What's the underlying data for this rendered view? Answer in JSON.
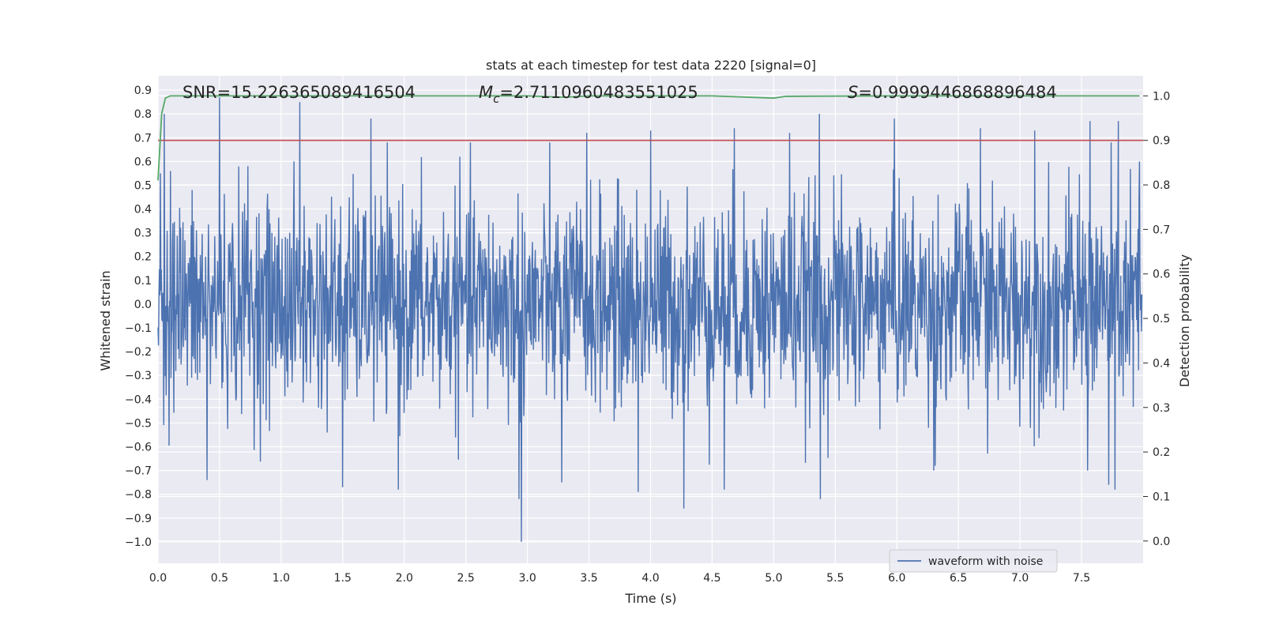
{
  "chart_data": {
    "type": "line",
    "title": "stats at each timestep for test data 2220 [signal=0]",
    "xlabel": "Time (s)",
    "ylabel_left": "Whitened strain",
    "ylabel_right": "Detection probability",
    "xlim": [
      0.0,
      8.0
    ],
    "ylim_left": [
      -1.09,
      0.96
    ],
    "ylim_right": [
      -0.05,
      1.045
    ],
    "x_ticks": [
      "0.0",
      "0.5",
      "1.0",
      "1.5",
      "2.0",
      "2.5",
      "3.0",
      "3.5",
      "4.0",
      "4.5",
      "5.0",
      "5.5",
      "6.0",
      "6.5",
      "7.0",
      "7.5"
    ],
    "y_left_ticks": [
      "0.9",
      "0.8",
      "0.7",
      "0.6",
      "0.5",
      "0.4",
      "0.3",
      "0.2",
      "0.1",
      "0.0",
      "−0.1",
      "−0.2",
      "−0.3",
      "−0.4",
      "−0.5",
      "−0.6",
      "−0.7",
      "−0.8",
      "−0.9",
      "−1.0"
    ],
    "y_right_ticks": [
      "1.0",
      "0.9",
      "0.8",
      "0.7",
      "0.6",
      "0.5",
      "0.4",
      "0.3",
      "0.2",
      "0.1",
      "0.0"
    ],
    "annotations": {
      "snr": "SNR=15.226365089416504",
      "mc_symbol": "M",
      "mc_sub": "c",
      "mc_value": "=2.7110960483551025",
      "s_symbol": "S",
      "s_value": "=0.9999446868896484"
    },
    "legend": {
      "label": "waveform with noise",
      "position": "lower-right"
    },
    "threshold": {
      "value": 0.9,
      "axis": "right",
      "color": "#c44e52"
    },
    "series": [
      {
        "name": "waveform with noise",
        "axis": "left",
        "color": "#4c72b0",
        "kind": "noise",
        "duration": 7.99,
        "samples": 2048,
        "rms": 0.22,
        "peaks": [
          [
            0.02,
            0.55
          ],
          [
            0.05,
            0.8
          ],
          [
            0.1,
            0.56
          ],
          [
            0.5,
            0.87
          ],
          [
            0.73,
            0.58
          ],
          [
            1.15,
            0.85
          ],
          [
            1.73,
            0.78
          ],
          [
            2.45,
            0.62
          ],
          [
            3.48,
            0.72
          ],
          [
            4.0,
            0.73
          ],
          [
            4.68,
            0.74
          ],
          [
            5.13,
            0.72
          ],
          [
            5.37,
            0.8
          ],
          [
            5.98,
            0.78
          ],
          [
            6.68,
            0.74
          ],
          [
            7.12,
            0.73
          ],
          [
            7.57,
            0.77
          ],
          [
            7.8,
            0.77
          ],
          [
            7.97,
            0.6
          ],
          [
            0.4,
            -0.74
          ],
          [
            1.5,
            -0.77
          ],
          [
            1.95,
            -0.78
          ],
          [
            2.93,
            -0.82
          ],
          [
            2.95,
            -1.0
          ],
          [
            3.28,
            -0.75
          ],
          [
            3.9,
            -0.79
          ],
          [
            4.27,
            -0.86
          ],
          [
            4.6,
            -0.78
          ],
          [
            5.38,
            -0.82
          ],
          [
            6.3,
            -0.7
          ],
          [
            7.55,
            -0.7
          ],
          [
            7.72,
            -0.76
          ],
          [
            7.77,
            -0.78
          ]
        ]
      },
      {
        "name": "detection probability",
        "axis": "right",
        "color": "#55a868",
        "x": [
          0.0,
          0.03,
          0.06,
          0.1,
          0.5,
          1.0,
          2.0,
          3.0,
          3.3,
          3.5,
          4.0,
          4.5,
          4.8,
          5.0,
          5.1,
          6.0,
          7.0,
          7.5,
          7.97
        ],
        "y": [
          0.81,
          0.96,
          0.995,
          1.0,
          1.0,
          1.0,
          1.0,
          1.0,
          0.997,
          1.0,
          1.0,
          1.0,
          0.997,
          0.995,
          0.999,
          1.0,
          1.0,
          1.0,
          1.0
        ]
      }
    ]
  }
}
